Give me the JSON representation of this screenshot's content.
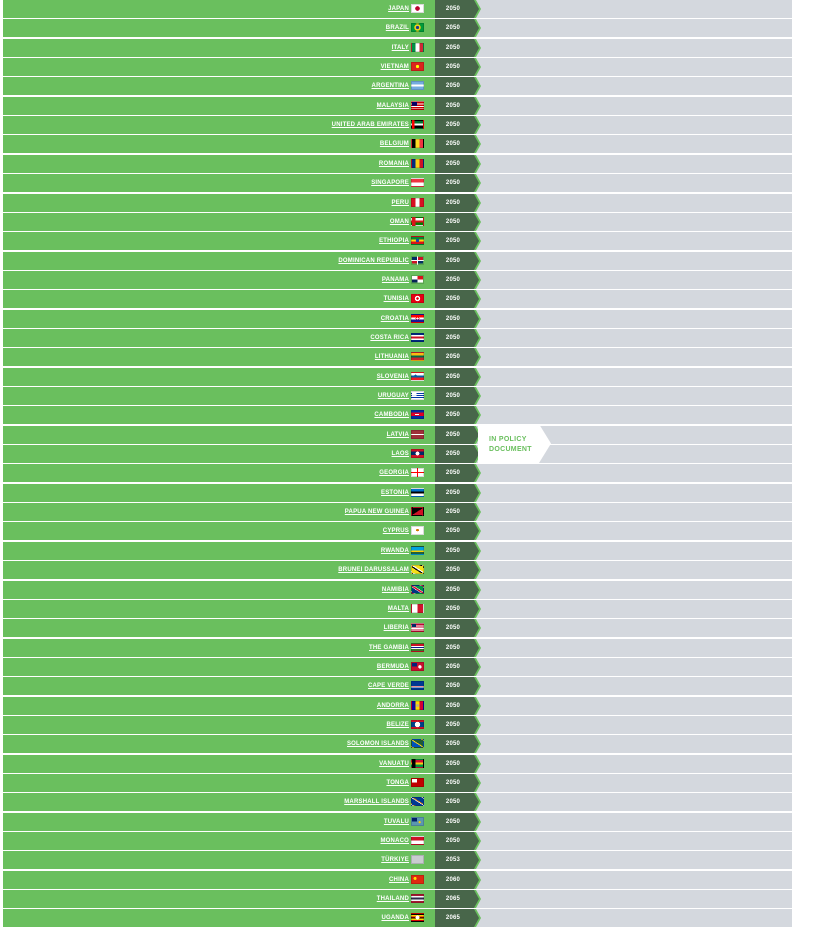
{
  "policy_tag": {
    "line1": "IN POLICY",
    "line2": "DOCUMENT"
  },
  "colors": {
    "green": "#6abf5e",
    "year_bg": "#48664a",
    "empty": "#d4d8de"
  },
  "countries": [
    {
      "name": "JAPAN",
      "year": "2050",
      "flag": "japan-flag-icon"
    },
    {
      "name": "BRAZIL",
      "year": "2050",
      "flag": "brazil-flag-icon"
    },
    {
      "name": "ITALY",
      "year": "2050",
      "flag": "italy-flag-icon"
    },
    {
      "name": "VIETNAM",
      "year": "2050",
      "flag": "vietnam-flag-icon"
    },
    {
      "name": "ARGENTINA",
      "year": "2050",
      "flag": "argentina-flag-icon"
    },
    {
      "name": "MALAYSIA",
      "year": "2050",
      "flag": "malaysia-flag-icon"
    },
    {
      "name": "UNITED ARAB EMIRATES",
      "year": "2050",
      "flag": "uae-flag-icon"
    },
    {
      "name": "BELGIUM",
      "year": "2050",
      "flag": "belgium-flag-icon"
    },
    {
      "name": "ROMANIA",
      "year": "2050",
      "flag": "romania-flag-icon"
    },
    {
      "name": "SINGAPORE",
      "year": "2050",
      "flag": "singapore-flag-icon"
    },
    {
      "name": "PERU",
      "year": "2050",
      "flag": "peru-flag-icon"
    },
    {
      "name": "OMAN",
      "year": "2050",
      "flag": "oman-flag-icon"
    },
    {
      "name": "ETHIOPIA",
      "year": "2050",
      "flag": "ethiopia-flag-icon"
    },
    {
      "name": "DOMINICAN REPUBLIC",
      "year": "2050",
      "flag": "dominican-republic-flag-icon"
    },
    {
      "name": "PANAMA",
      "year": "2050",
      "flag": "panama-flag-icon"
    },
    {
      "name": "TUNISIA",
      "year": "2050",
      "flag": "tunisia-flag-icon"
    },
    {
      "name": "CROATIA",
      "year": "2050",
      "flag": "croatia-flag-icon"
    },
    {
      "name": "COSTA RICA",
      "year": "2050",
      "flag": "costa-rica-flag-icon"
    },
    {
      "name": "LITHUANIA",
      "year": "2050",
      "flag": "lithuania-flag-icon"
    },
    {
      "name": "SLOVENIA",
      "year": "2050",
      "flag": "slovenia-flag-icon"
    },
    {
      "name": "URUGUAY",
      "year": "2050",
      "flag": "uruguay-flag-icon"
    },
    {
      "name": "CAMBODIA",
      "year": "2050",
      "flag": "cambodia-flag-icon"
    },
    {
      "name": "LATVIA",
      "year": "2050",
      "flag": "latvia-flag-icon"
    },
    {
      "name": "LAOS",
      "year": "2050",
      "flag": "laos-flag-icon"
    },
    {
      "name": "GEORGIA",
      "year": "2050",
      "flag": "georgia-flag-icon"
    },
    {
      "name": "ESTONIA",
      "year": "2050",
      "flag": "estonia-flag-icon"
    },
    {
      "name": "PAPUA NEW GUINEA",
      "year": "2050",
      "flag": "papua-new-guinea-flag-icon"
    },
    {
      "name": "CYPRUS",
      "year": "2050",
      "flag": "cyprus-flag-icon"
    },
    {
      "name": "RWANDA",
      "year": "2050",
      "flag": "rwanda-flag-icon"
    },
    {
      "name": "BRUNEI DARUSSALAM",
      "year": "2050",
      "flag": "brunei-flag-icon"
    },
    {
      "name": "NAMIBIA",
      "year": "2050",
      "flag": "namibia-flag-icon"
    },
    {
      "name": "MALTA",
      "year": "2050",
      "flag": "malta-flag-icon"
    },
    {
      "name": "LIBERIA",
      "year": "2050",
      "flag": "liberia-flag-icon"
    },
    {
      "name": "THE GAMBIA",
      "year": "2050",
      "flag": "gambia-flag-icon"
    },
    {
      "name": "BERMUDA",
      "year": "2050",
      "flag": "bermuda-flag-icon"
    },
    {
      "name": "CAPE VERDE",
      "year": "2050",
      "flag": "cape-verde-flag-icon"
    },
    {
      "name": "ANDORRA",
      "year": "2050",
      "flag": "andorra-flag-icon"
    },
    {
      "name": "BELIZE",
      "year": "2050",
      "flag": "belize-flag-icon"
    },
    {
      "name": "SOLOMON ISLANDS",
      "year": "2050",
      "flag": "solomon-islands-flag-icon"
    },
    {
      "name": "VANUATU",
      "year": "2050",
      "flag": "vanuatu-flag-icon"
    },
    {
      "name": "TONGA",
      "year": "2050",
      "flag": "tonga-flag-icon"
    },
    {
      "name": "MARSHALL ISLANDS",
      "year": "2050",
      "flag": "marshall-islands-flag-icon"
    },
    {
      "name": "TUVALU",
      "year": "2050",
      "flag": "tuvalu-flag-icon"
    },
    {
      "name": "MONACO",
      "year": "2050",
      "flag": "monaco-flag-icon"
    },
    {
      "name": "TÜRKIYE",
      "year": "2053",
      "flag": "turkiye-flag-icon"
    },
    {
      "name": "CHINA",
      "year": "2060",
      "flag": "china-flag-icon"
    },
    {
      "name": "THAILAND",
      "year": "2065",
      "flag": "thailand-flag-icon"
    },
    {
      "name": "UGANDA",
      "year": "2065",
      "flag": "uganda-flag-icon"
    }
  ]
}
